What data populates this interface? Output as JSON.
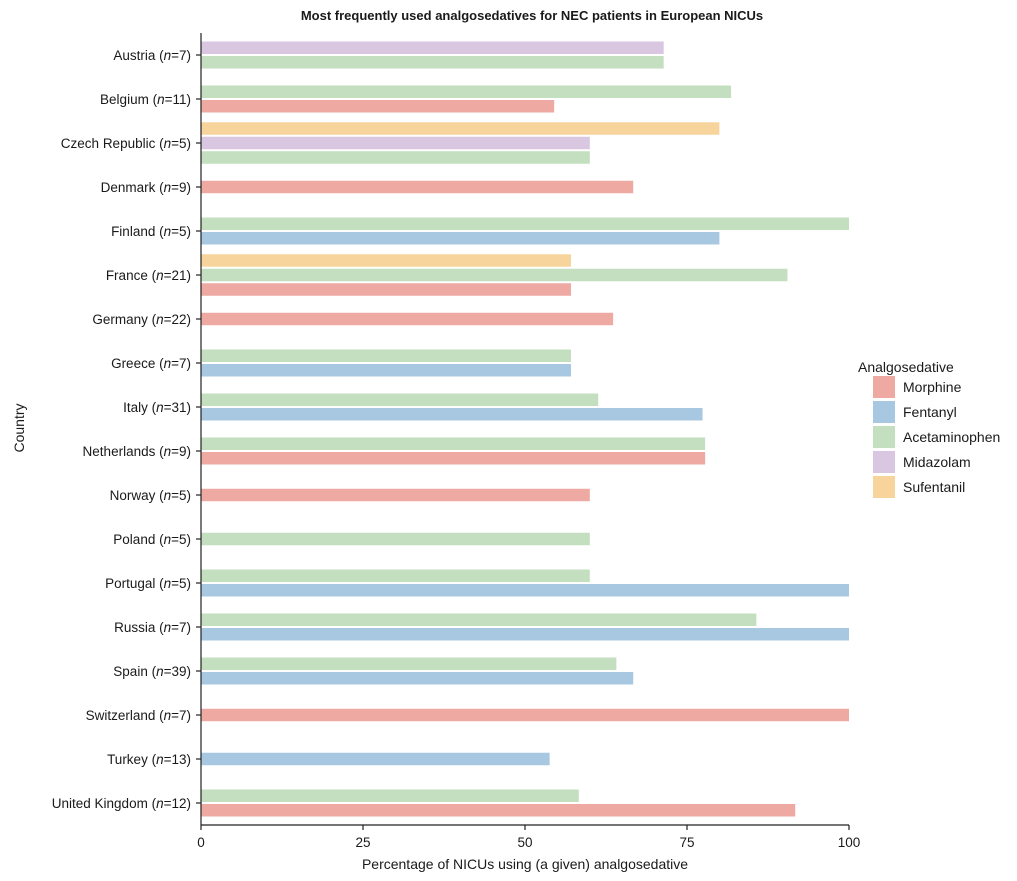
{
  "chart_data": {
    "type": "bar",
    "orientation": "horizontal",
    "title": "Most frequently used analgosedatives for NEC patients in European NICUs",
    "xlabel": "Percentage of NICUs using (a given) analgosedative",
    "ylabel": "Country",
    "xlim": [
      0,
      100
    ],
    "xticks": [
      0,
      25,
      50,
      75,
      100
    ],
    "grid": false,
    "legend": {
      "title": "Analgosedative",
      "position": "right",
      "entries": [
        {
          "name": "Morphine",
          "color": "#eea9a3"
        },
        {
          "name": "Fentanyl",
          "color": "#a8c7e0"
        },
        {
          "name": "Acetaminophen",
          "color": "#c4dfbf"
        },
        {
          "name": "Midazolam",
          "color": "#d9c6e0"
        },
        {
          "name": "Sufentanil",
          "color": "#f8d49d"
        }
      ]
    },
    "categories": [
      {
        "country": "Austria",
        "n": "7",
        "bars": [
          {
            "series": "Midazolam",
            "value": 71.4
          },
          {
            "series": "Acetaminophen",
            "value": 71.4
          }
        ]
      },
      {
        "country": "Belgium",
        "n": "11",
        "bars": [
          {
            "series": "Acetaminophen",
            "value": 81.8
          },
          {
            "series": "Morphine",
            "value": 54.5
          }
        ]
      },
      {
        "country": "Czech Republic",
        "n": "5",
        "bars": [
          {
            "series": "Sufentanil",
            "value": 80
          },
          {
            "series": "Midazolam",
            "value": 60
          },
          {
            "series": "Acetaminophen",
            "value": 60
          }
        ]
      },
      {
        "country": "Denmark",
        "n": "9",
        "bars": [
          {
            "series": "Morphine",
            "value": 66.7
          }
        ]
      },
      {
        "country": "Finland",
        "n": "5",
        "bars": [
          {
            "series": "Acetaminophen",
            "value": 100
          },
          {
            "series": "Fentanyl",
            "value": 80
          }
        ]
      },
      {
        "country": "France",
        "n": "21",
        "bars": [
          {
            "series": "Sufentanil",
            "value": 57.1
          },
          {
            "series": "Acetaminophen",
            "value": 90.5
          },
          {
            "series": "Morphine",
            "value": 57.1
          }
        ]
      },
      {
        "country": "Germany",
        "n": "22",
        "bars": [
          {
            "series": "Morphine",
            "value": 63.6
          }
        ]
      },
      {
        "country": "Greece",
        "n": "7",
        "bars": [
          {
            "series": "Acetaminophen",
            "value": 57.1
          },
          {
            "series": "Fentanyl",
            "value": 57.1
          }
        ]
      },
      {
        "country": "Italy",
        "n": "31",
        "bars": [
          {
            "series": "Acetaminophen",
            "value": 61.3
          },
          {
            "series": "Fentanyl",
            "value": 77.4
          }
        ]
      },
      {
        "country": "Netherlands",
        "n": "9",
        "bars": [
          {
            "series": "Acetaminophen",
            "value": 77.8
          },
          {
            "series": "Morphine",
            "value": 77.8
          }
        ]
      },
      {
        "country": "Norway",
        "n": "5",
        "bars": [
          {
            "series": "Morphine",
            "value": 60
          }
        ]
      },
      {
        "country": "Poland",
        "n": "5",
        "bars": [
          {
            "series": "Acetaminophen",
            "value": 60
          }
        ]
      },
      {
        "country": "Portugal",
        "n": "5",
        "bars": [
          {
            "series": "Acetaminophen",
            "value": 60
          },
          {
            "series": "Fentanyl",
            "value": 100
          }
        ]
      },
      {
        "country": "Russia",
        "n": "7",
        "bars": [
          {
            "series": "Acetaminophen",
            "value": 85.7
          },
          {
            "series": "Fentanyl",
            "value": 100
          }
        ]
      },
      {
        "country": "Spain",
        "n": "39",
        "bars": [
          {
            "series": "Acetaminophen",
            "value": 64.1
          },
          {
            "series": "Fentanyl",
            "value": 66.7
          }
        ]
      },
      {
        "country": "Switzerland",
        "n": "7",
        "bars": [
          {
            "series": "Morphine",
            "value": 100
          }
        ]
      },
      {
        "country": "Turkey",
        "n": "13",
        "bars": [
          {
            "series": "Fentanyl",
            "value": 53.8
          }
        ]
      },
      {
        "country": "United Kingdom",
        "n": "12",
        "bars": [
          {
            "series": "Acetaminophen",
            "value": 58.3
          },
          {
            "series": "Morphine",
            "value": 91.7
          }
        ]
      }
    ]
  }
}
